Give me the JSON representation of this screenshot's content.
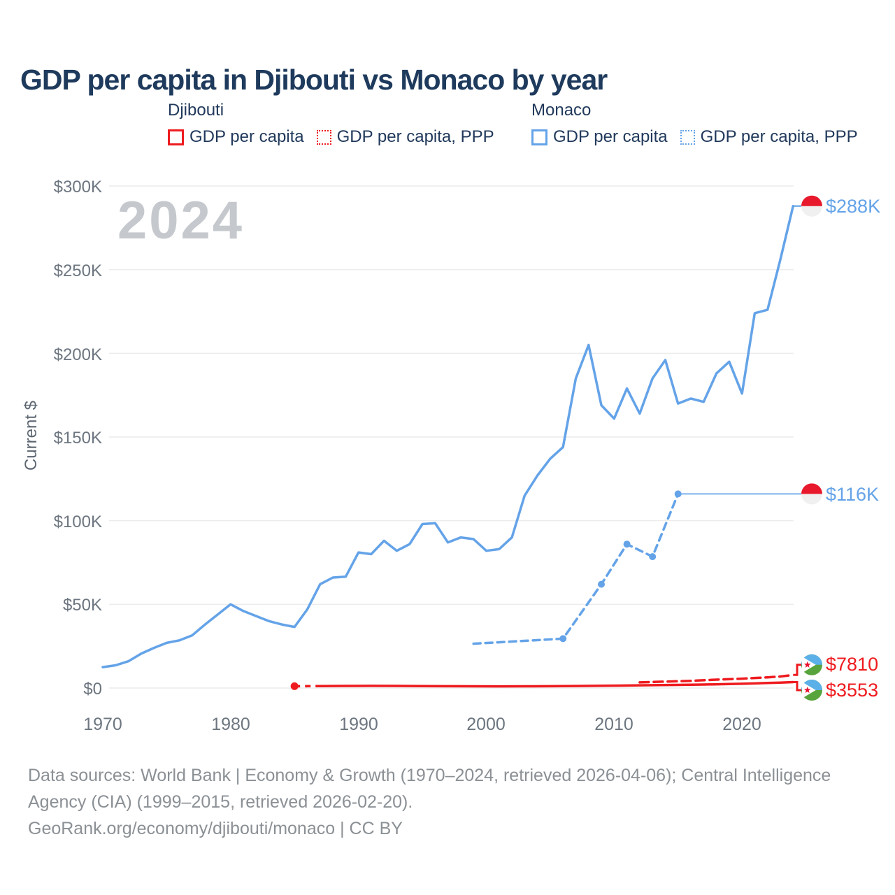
{
  "legend": {
    "djibouti": {
      "title": "Djibouti",
      "color": "#ee1b1f",
      "items": [
        {
          "label": "GDP per capita",
          "style": "solid"
        },
        {
          "label": "GDP per capita, PPP",
          "style": "dotted"
        }
      ]
    },
    "monaco": {
      "title": "Monaco",
      "color": "#64a3e8",
      "items": [
        {
          "label": "GDP per capita",
          "style": "solid"
        },
        {
          "label": "GDP per capita, PPP",
          "style": "dotted"
        }
      ]
    }
  },
  "chart_data": {
    "type": "line",
    "title": "GDP per capita in Djibouti vs Monaco by year",
    "xlabel": "",
    "ylabel": "Current $",
    "watermark": "2024",
    "x_ticks": [
      1970,
      1980,
      1990,
      2000,
      2010,
      2020
    ],
    "y_ticks": [
      "$0",
      "$50K",
      "$100K",
      "$150K",
      "$200K",
      "$250K",
      "$300K"
    ],
    "y_tick_values": [
      0,
      50000,
      100000,
      150000,
      200000,
      250000,
      300000
    ],
    "xlim": [
      1969,
      2025.5
    ],
    "ylim": [
      0,
      312000
    ],
    "grid": true,
    "series": [
      {
        "id": "monaco-gdp",
        "name": "Monaco — GDP per capita (current $)",
        "color": "#64a3e8",
        "style": "solid",
        "end_label": "$288K",
        "flag": "monaco",
        "points": [
          [
            1970,
            12500
          ],
          [
            1971,
            13600
          ],
          [
            1972,
            16000
          ],
          [
            1973,
            20500
          ],
          [
            1974,
            24000
          ],
          [
            1975,
            27000
          ],
          [
            1976,
            28500
          ],
          [
            1977,
            31500
          ],
          [
            1978,
            38000
          ],
          [
            1979,
            44000
          ],
          [
            1980,
            50000
          ],
          [
            1981,
            46000
          ],
          [
            1982,
            43000
          ],
          [
            1983,
            40000
          ],
          [
            1984,
            38000
          ],
          [
            1985,
            36500
          ],
          [
            1986,
            47000
          ],
          [
            1987,
            62000
          ],
          [
            1988,
            66000
          ],
          [
            1989,
            66500
          ],
          [
            1990,
            81000
          ],
          [
            1991,
            80000
          ],
          [
            1992,
            88000
          ],
          [
            1993,
            82000
          ],
          [
            1994,
            86000
          ],
          [
            1995,
            98000
          ],
          [
            1996,
            98500
          ],
          [
            1997,
            87000
          ],
          [
            1998,
            90000
          ],
          [
            1999,
            89000
          ],
          [
            2000,
            82000
          ],
          [
            2001,
            83000
          ],
          [
            2002,
            90000
          ],
          [
            2003,
            115000
          ],
          [
            2004,
            127000
          ],
          [
            2005,
            137000
          ],
          [
            2006,
            144000
          ],
          [
            2007,
            185000
          ],
          [
            2008,
            205000
          ],
          [
            2009,
            169000
          ],
          [
            2010,
            161000
          ],
          [
            2011,
            179000
          ],
          [
            2012,
            164000
          ],
          [
            2013,
            185000
          ],
          [
            2014,
            196000
          ],
          [
            2015,
            170000
          ],
          [
            2016,
            173000
          ],
          [
            2017,
            171000
          ],
          [
            2018,
            188000
          ],
          [
            2019,
            195000
          ],
          [
            2020,
            176000
          ],
          [
            2021,
            224000
          ],
          [
            2022,
            226000
          ],
          [
            2023,
            256000
          ],
          [
            2024,
            288000
          ]
        ]
      },
      {
        "id": "monaco-gdp-ppp",
        "name": "Monaco — GDP per capita, PPP",
        "color": "#64a3e8",
        "style": "dashed",
        "end_label": "$116K",
        "flag": "monaco",
        "marker_years": [
          2006,
          2009,
          2011,
          2013,
          2015
        ],
        "extension_to_year": 2024.6,
        "points": [
          [
            1999,
            26500
          ],
          [
            2006,
            29500
          ],
          [
            2009,
            62000
          ],
          [
            2011,
            86000
          ],
          [
            2013,
            78500
          ],
          [
            2015,
            116000
          ]
        ]
      },
      {
        "id": "djibouti-gdp",
        "name": "Djibouti — GDP per capita (current $)",
        "color": "#ee1b1f",
        "style": "solid",
        "end_label": "$3553",
        "flag": "djibouti",
        "start_dot": [
          1985,
          1100
        ],
        "intro_dashed": [
          [
            1985,
            1100
          ],
          [
            1987,
            1150
          ]
        ],
        "points": [
          [
            1987,
            1150
          ],
          [
            1989,
            1250
          ],
          [
            1991,
            1280
          ],
          [
            1993,
            1250
          ],
          [
            1995,
            1150
          ],
          [
            1997,
            1100
          ],
          [
            1999,
            1050
          ],
          [
            2001,
            1020
          ],
          [
            2003,
            1050
          ],
          [
            2005,
            1100
          ],
          [
            2007,
            1200
          ],
          [
            2009,
            1350
          ],
          [
            2011,
            1500
          ],
          [
            2013,
            1700
          ],
          [
            2015,
            1900
          ],
          [
            2017,
            2100
          ],
          [
            2019,
            2400
          ],
          [
            2020,
            2550
          ],
          [
            2021,
            2750
          ],
          [
            2022,
            3000
          ],
          [
            2023,
            3250
          ],
          [
            2024,
            3553
          ]
        ]
      },
      {
        "id": "djibouti-gdp-ppp",
        "name": "Djibouti — GDP per capita, PPP",
        "color": "#ee1b1f",
        "style": "dashed",
        "end_label": "$7810",
        "flag": "djibouti",
        "points": [
          [
            2012,
            3400
          ],
          [
            2014,
            3850
          ],
          [
            2016,
            4300
          ],
          [
            2018,
            5000
          ],
          [
            2020,
            5600
          ],
          [
            2022,
            6400
          ],
          [
            2023,
            6900
          ],
          [
            2024,
            7810
          ]
        ]
      }
    ]
  },
  "footer": {
    "sources": "Data sources: World Bank | Economy & Growth (1970–2024, retrieved 2026-04-06); Central Intelligence Agency (CIA) (1999–2015, retrieved 2026-02-20).",
    "link": "GeoRank.org/economy/djibouti/monaco | CC BY"
  }
}
